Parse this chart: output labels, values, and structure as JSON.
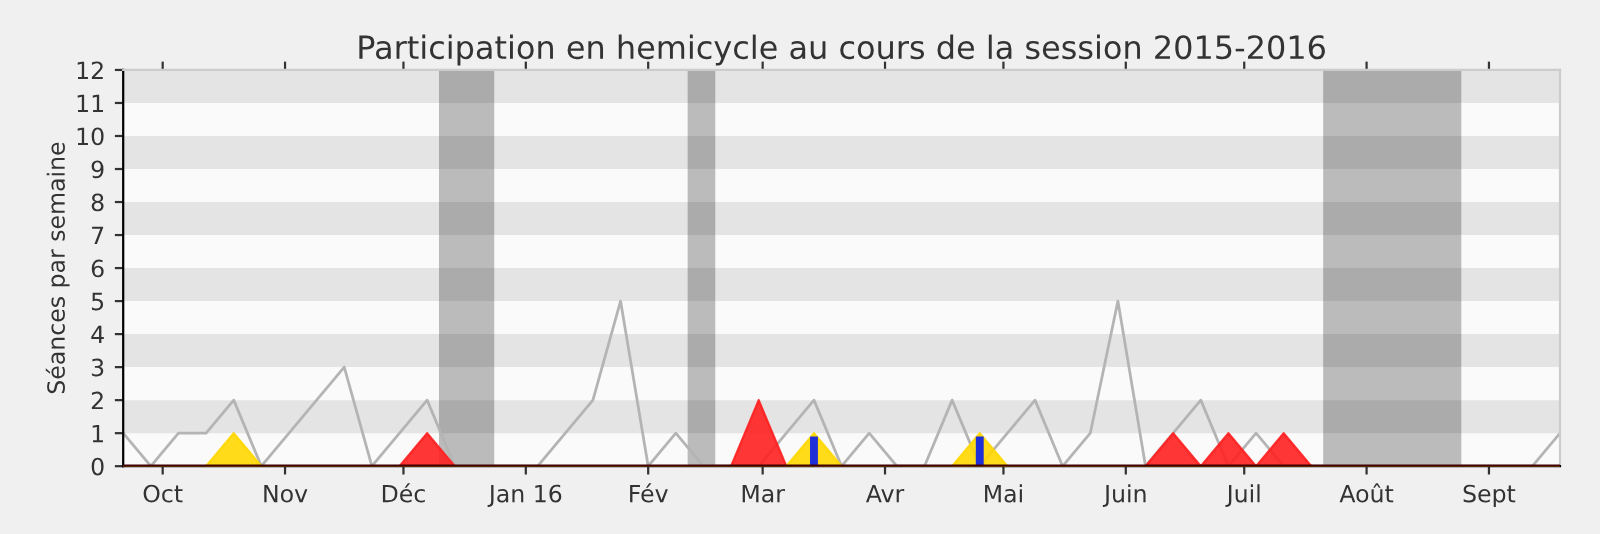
{
  "chart_data": {
    "type": "line",
    "title": "Participation en hemicycle au cours de la session 2015-2016",
    "ylabel": "Séances par semaine",
    "x": [
      "2015-09-21",
      "2015-09-28",
      "2015-10-05",
      "2015-10-12",
      "2015-10-19",
      "2015-10-26",
      "2015-11-02",
      "2015-11-09",
      "2015-11-16",
      "2015-11-23",
      "2015-11-30",
      "2015-12-07",
      "2015-12-14",
      "2015-12-21",
      "2015-12-28",
      "2016-01-04",
      "2016-01-11",
      "2016-01-18",
      "2016-01-25",
      "2016-02-01",
      "2016-02-08",
      "2016-02-15",
      "2016-02-22",
      "2016-02-29",
      "2016-03-07",
      "2016-03-14",
      "2016-03-21",
      "2016-03-28",
      "2016-04-04",
      "2016-04-11",
      "2016-04-18",
      "2016-04-25",
      "2016-05-02",
      "2016-05-09",
      "2016-05-16",
      "2016-05-23",
      "2016-05-30",
      "2016-06-06",
      "2016-06-13",
      "2016-06-20",
      "2016-06-27",
      "2016-07-04",
      "2016-07-11",
      "2016-07-18",
      "2016-07-25",
      "2016-08-01",
      "2016-08-08",
      "2016-08-15",
      "2016-08-22",
      "2016-08-29",
      "2016-09-05",
      "2016-09-12",
      "2016-09-19"
    ],
    "series": [
      {
        "color": "#b4b4b4",
        "values": [
          1,
          0,
          1,
          1,
          2,
          0,
          1,
          2,
          3,
          0,
          1,
          2,
          0,
          0,
          0,
          0,
          1,
          2,
          5,
          0,
          1,
          0,
          0,
          0,
          1,
          2,
          0,
          1,
          0,
          0,
          2,
          0,
          1,
          2,
          0,
          1,
          5,
          0,
          1,
          2,
          0,
          1,
          0,
          0,
          0,
          0,
          0,
          0,
          0,
          0,
          0,
          0,
          1
        ]
      },
      {
        "type": "area",
        "color": "#ff2020",
        "values": [
          0,
          0,
          0,
          0,
          0,
          0,
          0,
          0,
          0,
          0,
          0,
          1,
          0,
          0,
          0,
          0,
          0,
          0,
          0,
          0,
          0,
          0,
          0,
          2,
          0,
          0,
          0,
          0,
          0,
          0,
          0,
          0,
          0,
          0,
          0,
          0,
          0,
          0,
          1,
          0,
          1,
          0,
          1,
          0,
          0,
          0,
          0,
          0,
          0,
          0,
          0,
          0,
          0
        ]
      },
      {
        "type": "area",
        "color": "#ffd700",
        "values": [
          0,
          0,
          0,
          0,
          1,
          0,
          0,
          0,
          0,
          0,
          0,
          0,
          0,
          0,
          0,
          0,
          0,
          0,
          0,
          0,
          0,
          0,
          0,
          0,
          0,
          1,
          0,
          0,
          0,
          0,
          0,
          1,
          0,
          0,
          0,
          0,
          0,
          0,
          0,
          0,
          0,
          0,
          0,
          0,
          0,
          0,
          0,
          0,
          0,
          0,
          0,
          0,
          0
        ]
      },
      {
        "type": "bar",
        "color": "#1f2fd8",
        "values": [
          0,
          0,
          0,
          0,
          0,
          0,
          0,
          0,
          0,
          0,
          0,
          0,
          0,
          0,
          0,
          0,
          0,
          0,
          0,
          0,
          0,
          0,
          0,
          0,
          0,
          0.9,
          0,
          0,
          0,
          0,
          0,
          0.9,
          0,
          0,
          0,
          0,
          0,
          0,
          0,
          0,
          0,
          0,
          0,
          0,
          0,
          0,
          0,
          0,
          0,
          0,
          0,
          0,
          0
        ]
      }
    ],
    "xlim": [
      "2015-09-21",
      "2016-09-19"
    ],
    "xticks": [
      {
        "value": "2015-10-01",
        "label": "Oct"
      },
      {
        "value": "2015-11-01",
        "label": "Nov"
      },
      {
        "value": "2015-12-01",
        "label": "Déc"
      },
      {
        "value": "2016-01-01",
        "label": "Jan 16"
      },
      {
        "value": "2016-02-01",
        "label": "Fév"
      },
      {
        "value": "2016-03-01",
        "label": "Mar"
      },
      {
        "value": "2016-04-01",
        "label": "Avr"
      },
      {
        "value": "2016-05-01",
        "label": "Mai"
      },
      {
        "value": "2016-06-01",
        "label": "Juin"
      },
      {
        "value": "2016-07-01",
        "label": "Juil"
      },
      {
        "value": "2016-08-01",
        "label": "Août"
      },
      {
        "value": "2016-09-01",
        "label": "Sept"
      }
    ],
    "ylim": [
      0,
      12
    ],
    "yticks": [
      0,
      1,
      2,
      3,
      4,
      5,
      6,
      7,
      8,
      9,
      10,
      11,
      12
    ],
    "bands": [
      {
        "axis": "y",
        "from": 1,
        "to": 2,
        "color": "#e4e4e4"
      },
      {
        "axis": "y",
        "from": 3,
        "to": 4,
        "color": "#e4e4e4"
      },
      {
        "axis": "y",
        "from": 5,
        "to": 6,
        "color": "#e4e4e4"
      },
      {
        "axis": "y",
        "from": 7,
        "to": 8,
        "color": "#e4e4e4"
      },
      {
        "axis": "y",
        "from": 9,
        "to": 10,
        "color": "#e4e4e4"
      },
      {
        "axis": "y",
        "from": 11,
        "to": 12,
        "color": "#e4e4e4"
      },
      {
        "axis": "x",
        "from": "2015-12-10",
        "to": "2015-12-24"
      },
      {
        "axis": "x",
        "from": "2016-02-11",
        "to": "2016-02-18"
      },
      {
        "axis": "x",
        "from": "2016-07-21",
        "to": "2016-08-25"
      }
    ]
  }
}
